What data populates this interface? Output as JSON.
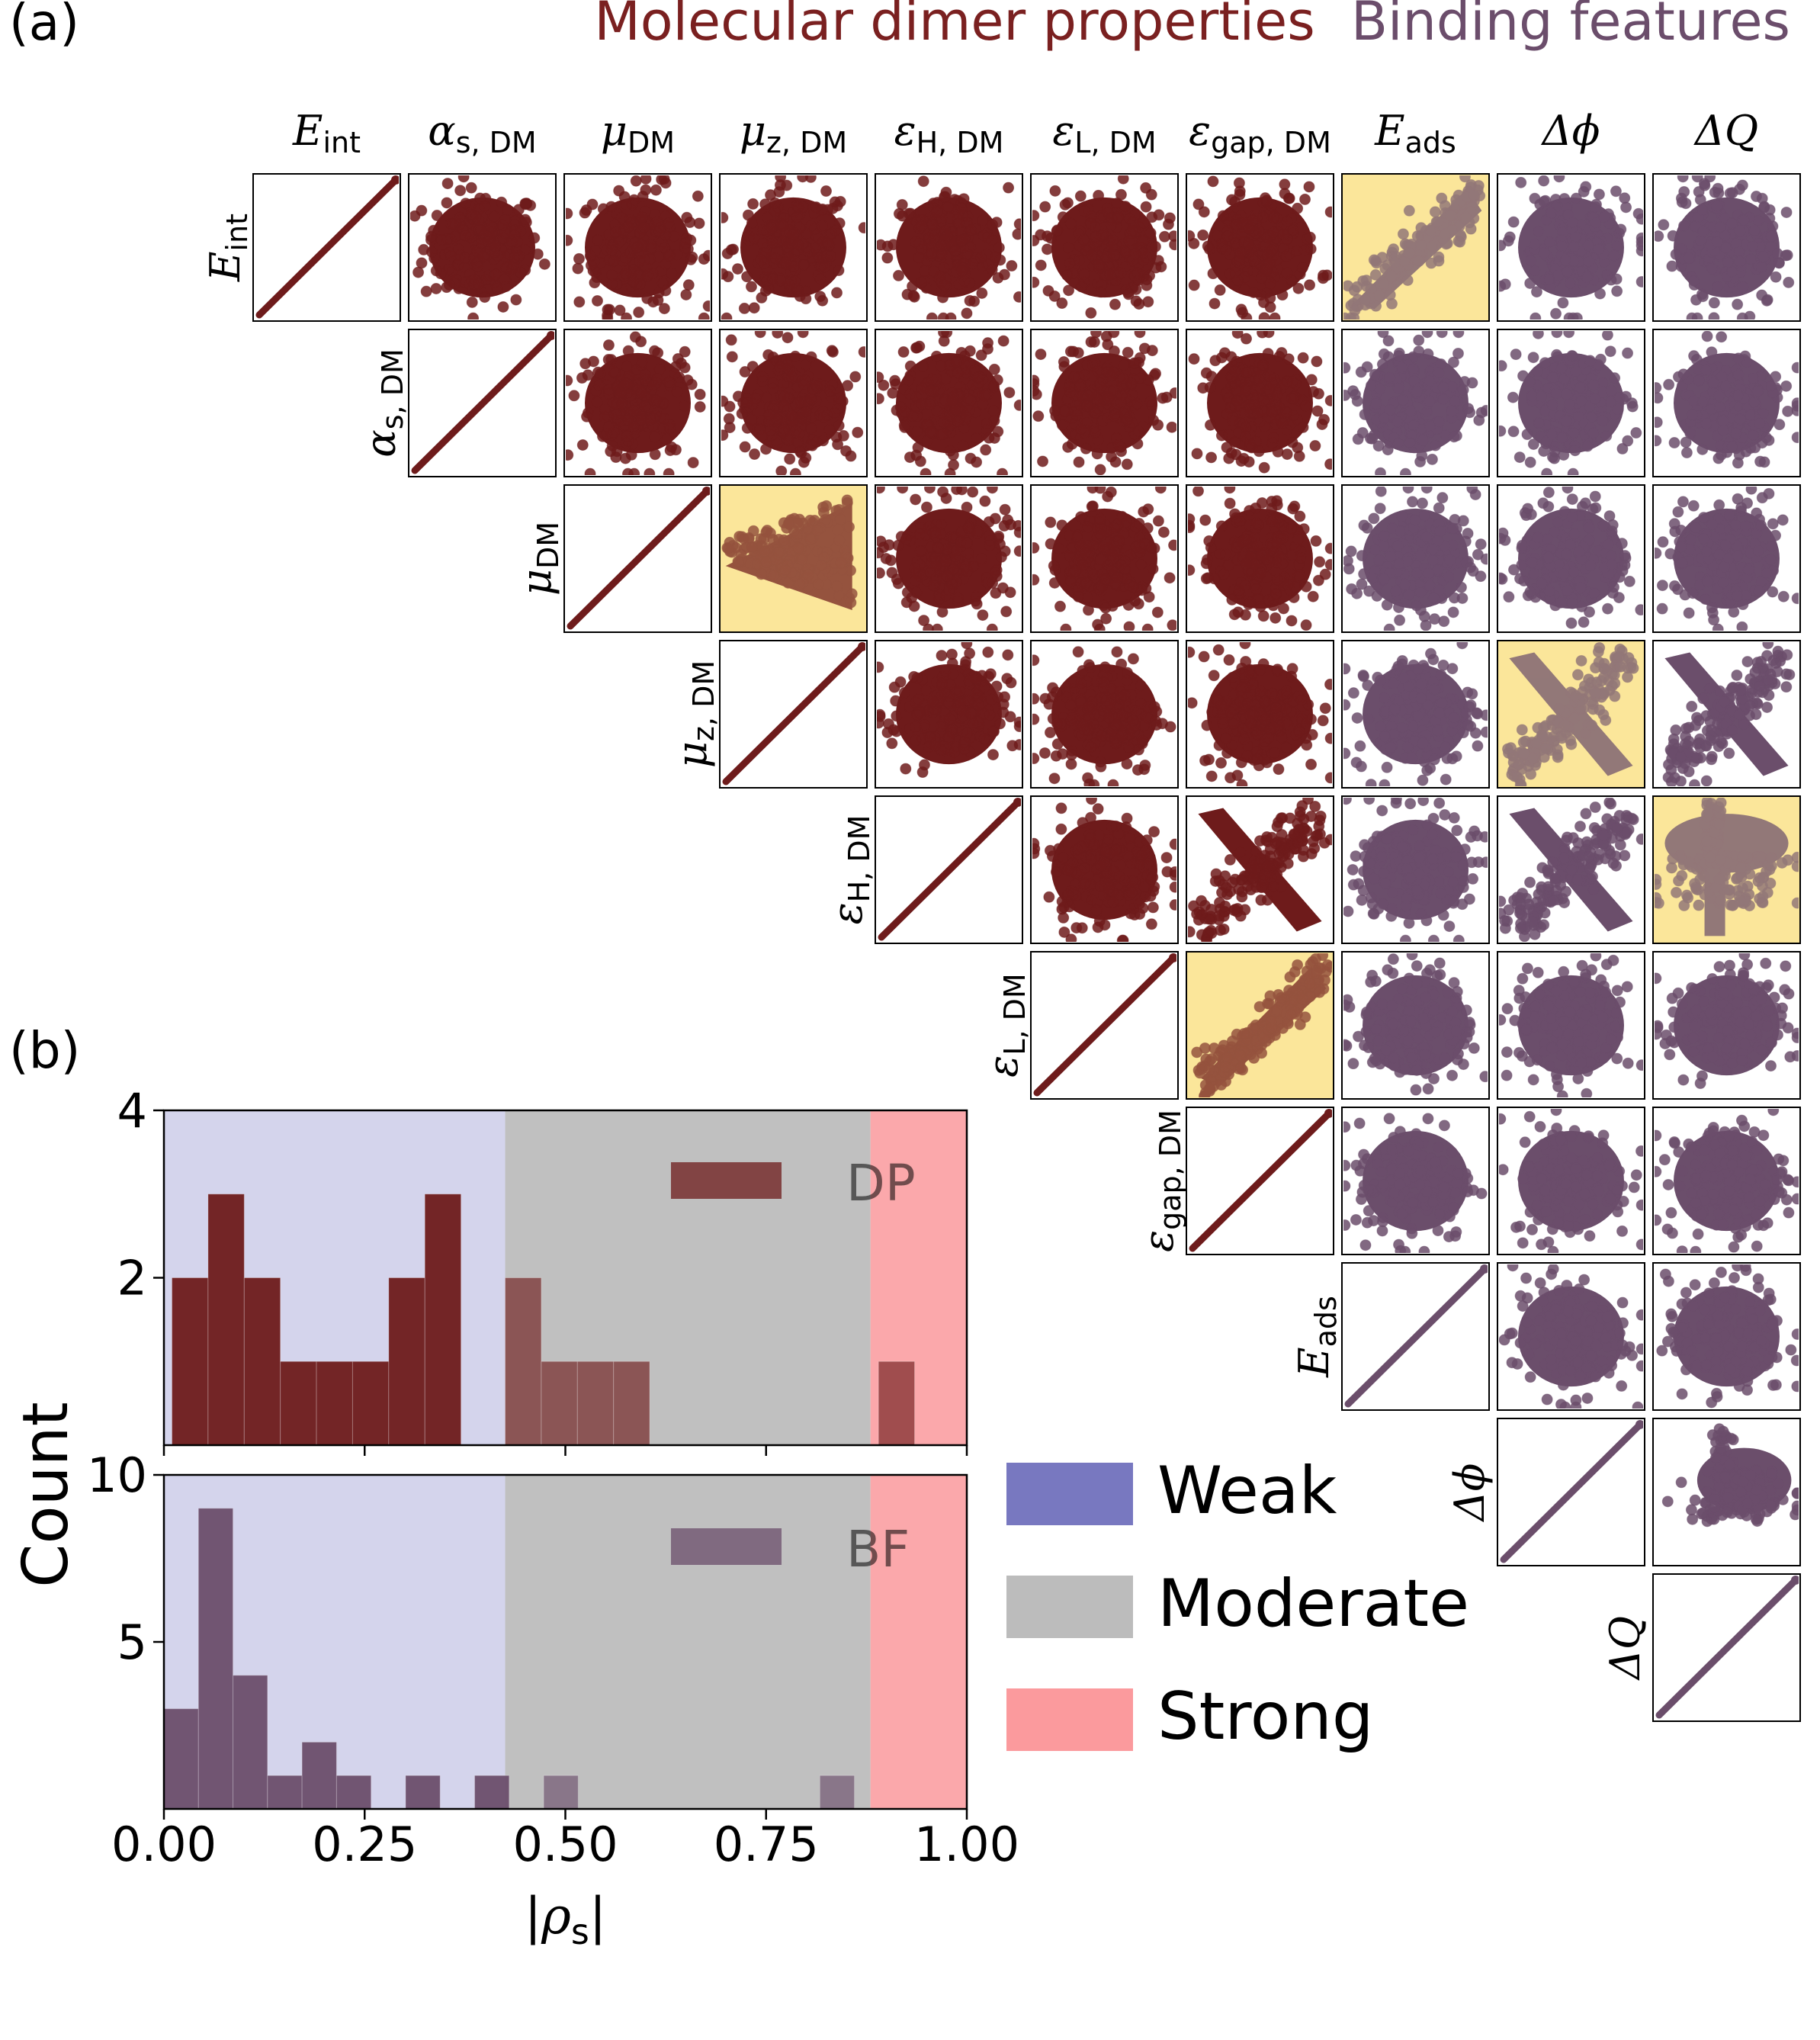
{
  "panel_labels": {
    "a": "(a)",
    "b": "(b)"
  },
  "colors": {
    "dp": "#6e1b1b",
    "bf": "#6b4e6b",
    "dp_title": "#7a2020",
    "bf_title": "#6b4d6b",
    "highlight": "#fbe69a",
    "weak_zone": "#d4d4ec",
    "moderate_zone": "#c0c0c0",
    "strong_zone": "#fba8ab",
    "weak_legend": "#7878c0",
    "moderate_legend": "#bcbcbc",
    "strong_legend": "#fb9a9d"
  },
  "chart_data": [
    {
      "type": "scatter-matrix",
      "group_titles": {
        "dp": "Molecular dimer properties",
        "bf": "Binding features"
      },
      "variables": [
        {
          "base": "E",
          "sub": "int",
          "group": "dp"
        },
        {
          "base": "α",
          "sub": "s, DM",
          "group": "dp"
        },
        {
          "base": "μ",
          "sub": "DM",
          "group": "dp"
        },
        {
          "base": "μ",
          "sub": "z, DM",
          "group": "dp"
        },
        {
          "base": "ε",
          "sub": "H, DM",
          "group": "dp"
        },
        {
          "base": "ε",
          "sub": "L, DM",
          "group": "dp"
        },
        {
          "base": "ε",
          "sub": "gap, DM",
          "group": "dp"
        },
        {
          "base": "E",
          "sub": "ads",
          "group": "bf"
        },
        {
          "base": "Δϕ",
          "sub": "",
          "group": "bf"
        },
        {
          "base": "ΔQ",
          "sub": "",
          "group": "bf"
        }
      ],
      "highlighted_pairs": [
        [
          0,
          7
        ],
        [
          2,
          3
        ],
        [
          3,
          8
        ],
        [
          4,
          9
        ],
        [
          5,
          6
        ]
      ],
      "pair_shapes": {
        "0-7": "pos",
        "2-3": "tri",
        "3-8": "neg",
        "4-9": "mush",
        "5-6": "pos",
        "4-6": "neg",
        "4-5": "blob",
        "3-4": "blob",
        "3-5": "blob",
        "3-6": "blob",
        "3-9": "neg",
        "4-8": "neg",
        "7-8": "blob",
        "7-9": "blob",
        "8-9": "up"
      }
    },
    {
      "type": "histogram",
      "group": "dp",
      "label": "DP",
      "bin_edges": [
        0.0,
        0.0444,
        0.0889,
        0.1333,
        0.1778,
        0.2222,
        0.2667,
        0.3111,
        0.3556,
        0.4,
        0.4444,
        0.4889,
        0.5333,
        0.5778,
        0.6222,
        0.6667,
        0.7111,
        0.7556,
        0.8,
        0.8444,
        0.8889,
        0.9333,
        0.9778
      ],
      "bars": [
        {
          "x0": 0.01,
          "x1": 0.055,
          "count": 2
        },
        {
          "x0": 0.055,
          "x1": 0.1,
          "count": 3
        },
        {
          "x0": 0.1,
          "x1": 0.145,
          "count": 2
        },
        {
          "x0": 0.145,
          "x1": 0.19,
          "count": 1
        },
        {
          "x0": 0.19,
          "x1": 0.235,
          "count": 1
        },
        {
          "x0": 0.235,
          "x1": 0.28,
          "count": 1
        },
        {
          "x0": 0.28,
          "x1": 0.325,
          "count": 2
        },
        {
          "x0": 0.325,
          "x1": 0.37,
          "count": 3
        },
        {
          "x0": 0.425,
          "x1": 0.47,
          "count": 2
        },
        {
          "x0": 0.47,
          "x1": 0.515,
          "count": 1
        },
        {
          "x0": 0.515,
          "x1": 0.56,
          "count": 1
        },
        {
          "x0": 0.56,
          "x1": 0.605,
          "count": 1
        },
        {
          "x0": 0.89,
          "x1": 0.935,
          "count": 1
        }
      ],
      "ylim": [
        0,
        4
      ],
      "yticks": [
        2,
        4
      ],
      "zones": {
        "weak": [
          0,
          0.425
        ],
        "moderate": [
          0.425,
          0.88
        ],
        "strong": [
          0.88,
          1.0
        ]
      }
    },
    {
      "type": "histogram",
      "group": "bf",
      "label": "BF",
      "bars": [
        {
          "x0": 0.0,
          "x1": 0.043,
          "count": 3
        },
        {
          "x0": 0.043,
          "x1": 0.086,
          "count": 9
        },
        {
          "x0": 0.086,
          "x1": 0.129,
          "count": 4
        },
        {
          "x0": 0.129,
          "x1": 0.172,
          "count": 1
        },
        {
          "x0": 0.172,
          "x1": 0.215,
          "count": 2
        },
        {
          "x0": 0.215,
          "x1": 0.258,
          "count": 1
        },
        {
          "x0": 0.301,
          "x1": 0.344,
          "count": 1
        },
        {
          "x0": 0.387,
          "x1": 0.43,
          "count": 1
        },
        {
          "x0": 0.473,
          "x1": 0.516,
          "count": 1
        },
        {
          "x0": 0.817,
          "x1": 0.86,
          "count": 1
        }
      ],
      "ylim": [
        0,
        10
      ],
      "yticks": [
        5,
        10
      ],
      "xlim": [
        0,
        1
      ],
      "xticks": [
        "0.00",
        "0.25",
        "0.50",
        "0.75",
        "1.00"
      ],
      "xlabel": "|ρ",
      "xlabel_sub": "s",
      "xlabel_end": "|",
      "zones": {
        "weak": [
          0,
          0.425
        ],
        "moderate": [
          0.425,
          0.88
        ],
        "strong": [
          0.88,
          1.0
        ]
      }
    }
  ],
  "histogram_common": {
    "ylabel": "Count"
  },
  "legend": [
    {
      "key": "weak",
      "label": "Weak"
    },
    {
      "key": "moderate",
      "label": "Moderate"
    },
    {
      "key": "strong",
      "label": "Strong"
    }
  ]
}
